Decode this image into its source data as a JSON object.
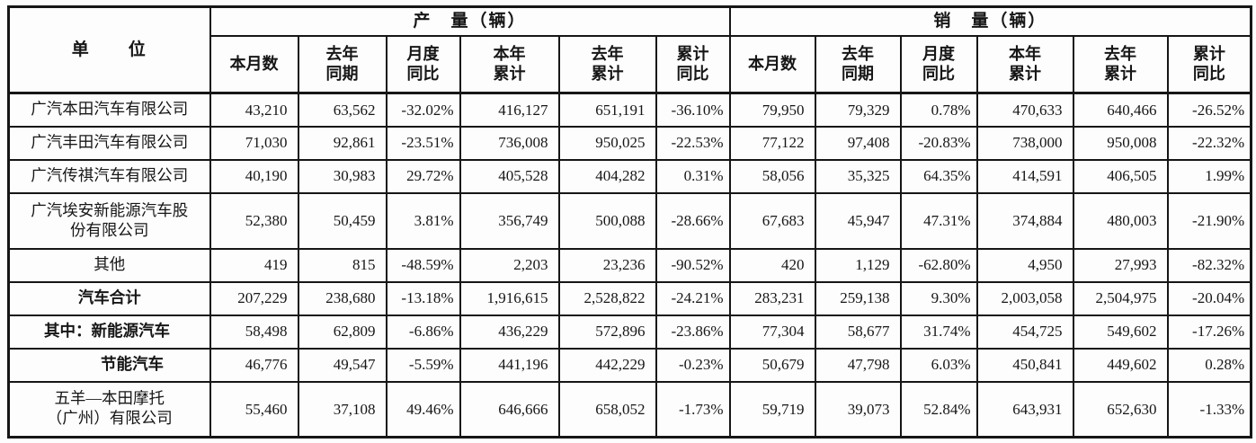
{
  "table": {
    "unit_header": "单　　位",
    "production_header": "产　量（辆）",
    "sales_header": "销　量（辆）",
    "sub_headers": [
      "本月数",
      "去年\n同期",
      "月度\n同比",
      "本年\n累计",
      "去年\n累计",
      "累计\n同比"
    ],
    "rows": [
      {
        "unit": "广汽本田汽车有限公司",
        "bold": false,
        "indent": 0,
        "production": [
          "43,210",
          "63,562",
          "-32.02%",
          "416,127",
          "651,191",
          "-36.10%"
        ],
        "sales": [
          "79,950",
          "79,329",
          "0.78%",
          "470,633",
          "640,466",
          "-26.52%"
        ]
      },
      {
        "unit": "广汽丰田汽车有限公司",
        "bold": false,
        "indent": 0,
        "production": [
          "71,030",
          "92,861",
          "-23.51%",
          "736,008",
          "950,025",
          "-22.53%"
        ],
        "sales": [
          "77,122",
          "97,408",
          "-20.83%",
          "738,000",
          "950,008",
          "-22.32%"
        ]
      },
      {
        "unit": "广汽传祺汽车有限公司",
        "bold": false,
        "indent": 0,
        "production": [
          "40,190",
          "30,983",
          "29.72%",
          "405,528",
          "404,282",
          "0.31%"
        ],
        "sales": [
          "58,056",
          "35,325",
          "64.35%",
          "414,591",
          "406,505",
          "1.99%"
        ]
      },
      {
        "unit": "广汽埃安新能源汽车股\n份有限公司",
        "bold": false,
        "indent": 0,
        "production": [
          "52,380",
          "50,459",
          "3.81%",
          "356,749",
          "500,088",
          "-28.66%"
        ],
        "sales": [
          "67,683",
          "45,947",
          "47.31%",
          "374,884",
          "480,003",
          "-21.90%"
        ]
      },
      {
        "unit": "其他",
        "bold": false,
        "indent": 0,
        "production": [
          "419",
          "815",
          "-48.59%",
          "2,203",
          "23,236",
          "-90.52%"
        ],
        "sales": [
          "420",
          "1,129",
          "-62.80%",
          "4,950",
          "27,993",
          "-82.32%"
        ]
      },
      {
        "unit": "汽车合计",
        "bold": true,
        "indent": 0,
        "production": [
          "207,229",
          "238,680",
          "-13.18%",
          "1,916,615",
          "2,528,822",
          "-24.21%"
        ],
        "sales": [
          "283,231",
          "259,138",
          "9.30%",
          "2,003,058",
          "2,504,975",
          "-20.04%"
        ]
      },
      {
        "unit": "其中：新能源汽车",
        "bold": true,
        "indent": 1,
        "production": [
          "58,498",
          "62,809",
          "-6.86%",
          "436,229",
          "572,896",
          "-23.86%"
        ],
        "sales": [
          "77,304",
          "58,677",
          "31.74%",
          "454,725",
          "549,602",
          "-17.26%"
        ]
      },
      {
        "unit": "节能汽车",
        "bold": true,
        "indent": 2,
        "production": [
          "46,776",
          "49,547",
          "-5.59%",
          "441,196",
          "442,229",
          "-0.23%"
        ],
        "sales": [
          "50,679",
          "47,798",
          "6.03%",
          "450,841",
          "449,602",
          "0.28%"
        ]
      },
      {
        "unit": "五羊—本田摩托\n（广州）有限公司",
        "bold": false,
        "indent": 0,
        "production": [
          "55,460",
          "37,108",
          "49.46%",
          "646,666",
          "658,052",
          "-1.73%"
        ],
        "sales": [
          "59,719",
          "39,073",
          "52.84%",
          "643,931",
          "652,630",
          "-1.33%"
        ]
      }
    ]
  }
}
